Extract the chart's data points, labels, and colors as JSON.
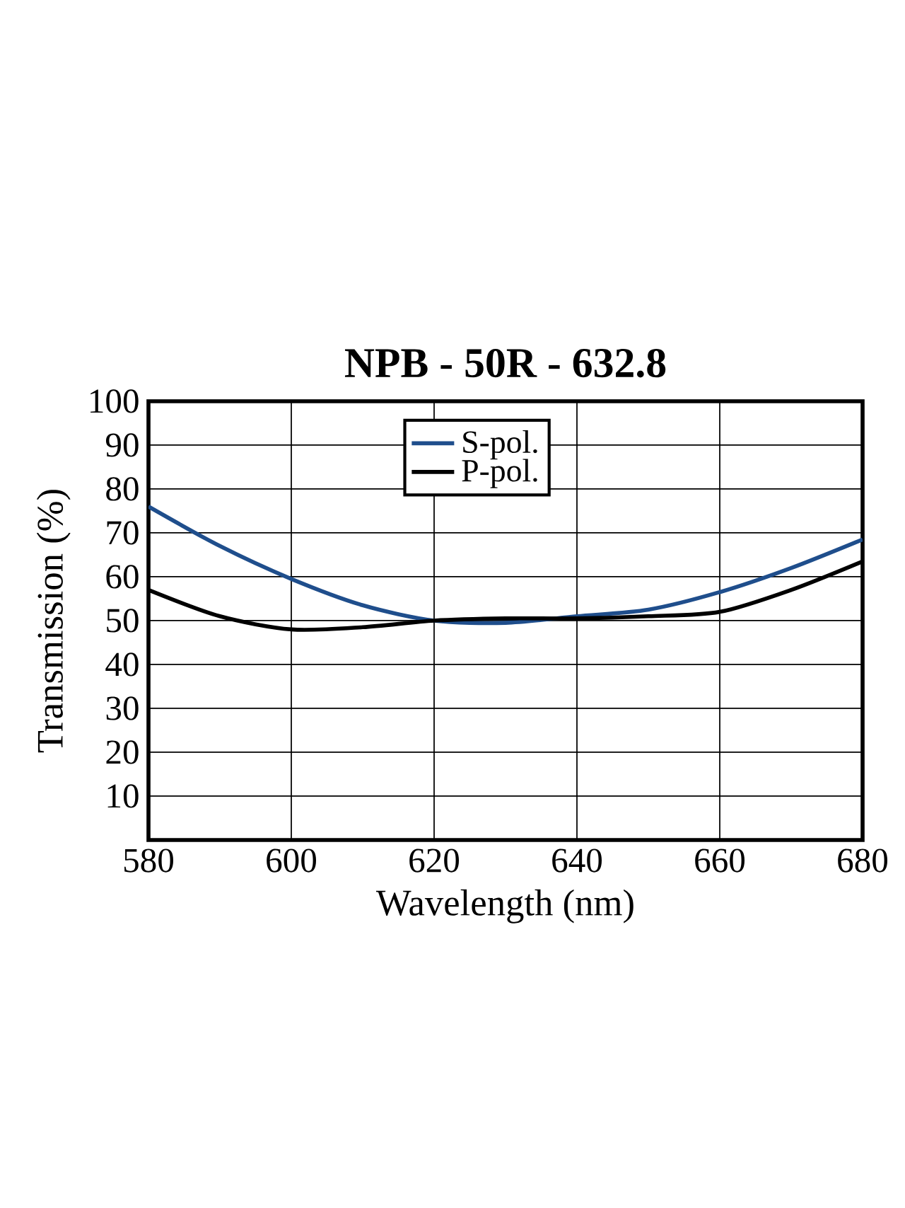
{
  "chart_data": {
    "type": "line",
    "title": "NPB - 50R - 632.8",
    "xlabel": "Wavelength (nm)",
    "ylabel": "Transmission (%)",
    "x": [
      580,
      590,
      600,
      610,
      620,
      630,
      640,
      650,
      660,
      670,
      680
    ],
    "series": [
      {
        "name": "S-pol.",
        "color": "#1f4e8c",
        "values": [
          76,
          67,
          59.5,
          53.5,
          50,
          49.5,
          51,
          52.5,
          56.5,
          62,
          68.5
        ]
      },
      {
        "name": "P-pol.",
        "color": "#000000",
        "values": [
          57,
          51,
          48,
          48.5,
          50,
          50.5,
          50.5,
          51,
          52,
          57,
          63.5
        ]
      }
    ],
    "xlim": [
      580,
      680
    ],
    "xticks": [
      580,
      600,
      620,
      640,
      660,
      680
    ],
    "ylim": [
      0,
      100
    ],
    "yticks": [
      10,
      20,
      30,
      40,
      50,
      60,
      70,
      80,
      90,
      100
    ],
    "grid": true,
    "legend": "top",
    "marker": "none",
    "line_style": "solid"
  }
}
